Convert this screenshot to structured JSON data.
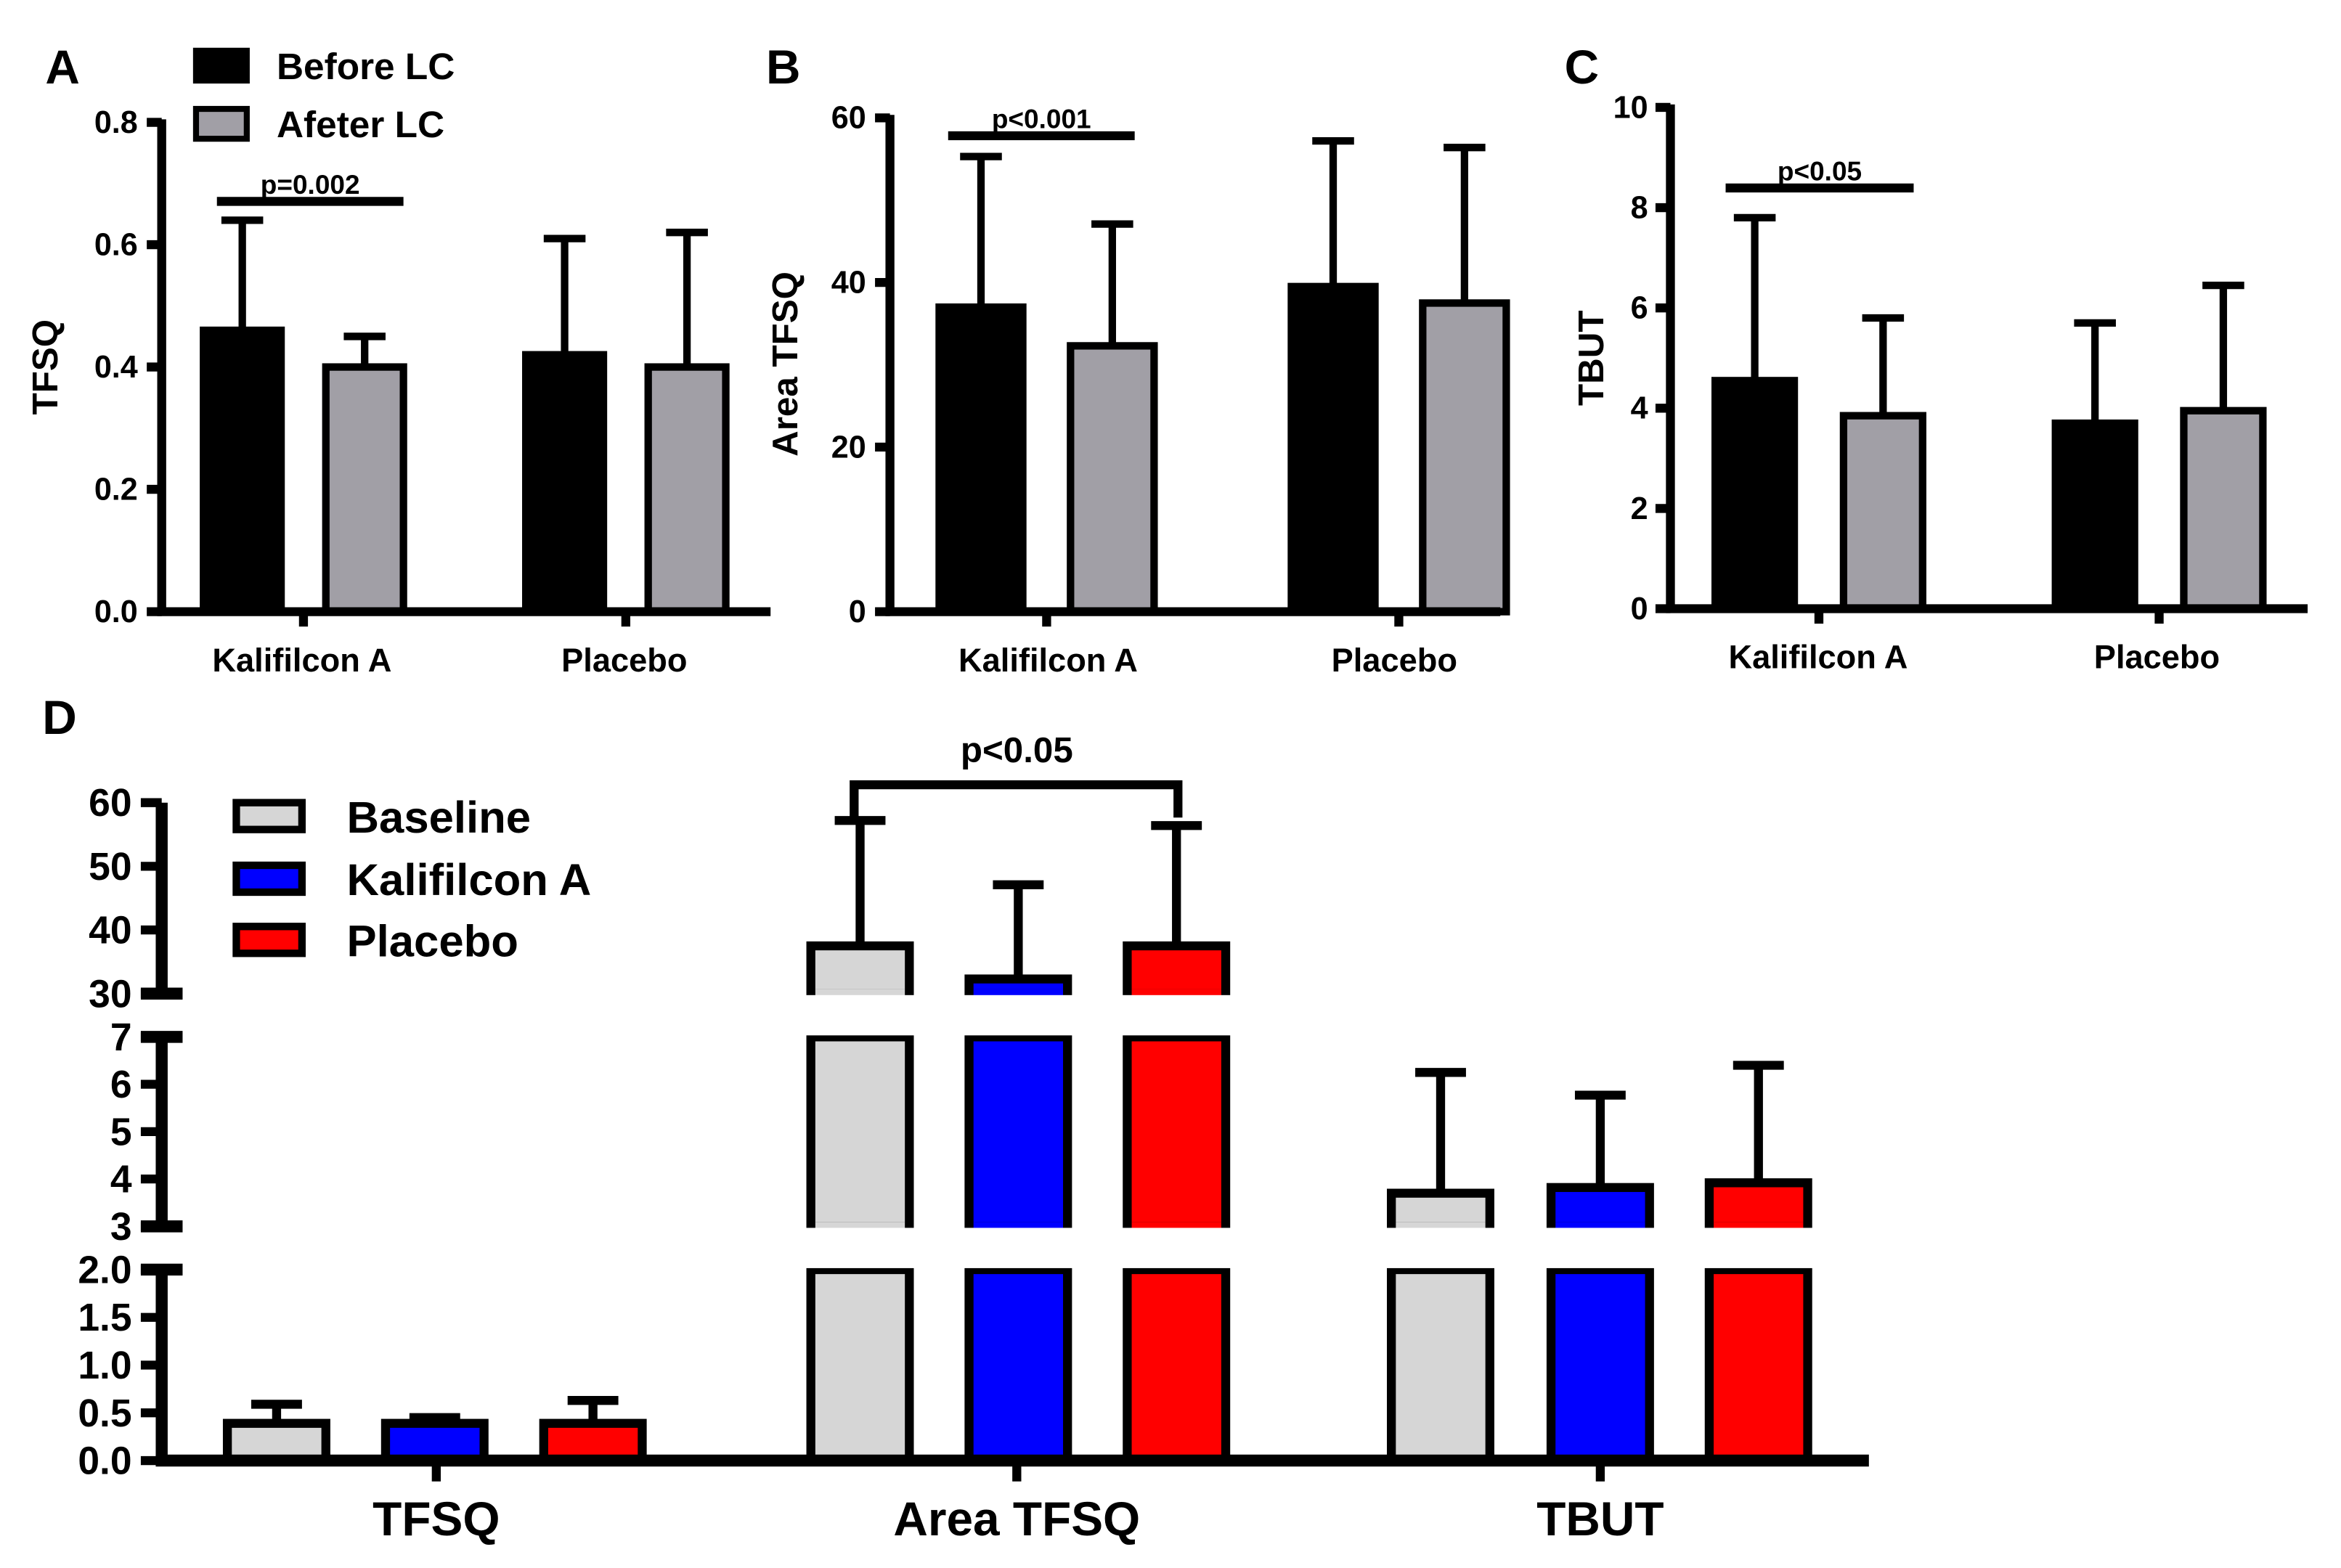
{
  "chart_data": [
    {
      "panel": "A",
      "type": "bar",
      "ylabel": "TFSQ",
      "xlabel": "",
      "ylim": [
        0,
        0.8
      ],
      "yticks": [
        "0.0",
        "0.2",
        "0.4",
        "0.6",
        "0.8"
      ],
      "yticks_values": [
        0,
        0.2,
        0.4,
        0.6,
        0.8
      ],
      "categories": [
        "Kalifilcon A",
        "Placebo"
      ],
      "series": [
        {
          "name": "Before LC",
          "color": "#000000",
          "values": [
            0.46,
            0.42
          ],
          "errors": [
            0.18,
            0.19
          ]
        },
        {
          "name": "Afeter LC",
          "color": "#a19fa6",
          "values": [
            0.4,
            0.4
          ],
          "errors": [
            0.05,
            0.22
          ]
        }
      ],
      "legend": {
        "position": "top-left"
      },
      "annotation": {
        "text": "p=0.002",
        "category": 0
      }
    },
    {
      "panel": "B",
      "type": "bar",
      "ylabel": "Area TFSQ",
      "xlabel": "",
      "ylim": [
        0,
        60
      ],
      "yticks": [
        "0",
        "20",
        "40",
        "60"
      ],
      "yticks_values": [
        0,
        20,
        40,
        60
      ],
      "categories": [
        "Kalifilcon A",
        "Placebo"
      ],
      "series": [
        {
          "name": "Before LC",
          "color": "#000000",
          "values": [
            37,
            39.5
          ],
          "errors": [
            18.3,
            17.7
          ]
        },
        {
          "name": "Afeter LC",
          "color": "#a19fa6",
          "values": [
            32.3,
            37.5
          ],
          "errors": [
            14.8,
            18.9
          ]
        }
      ],
      "annotation": {
        "text": "p<0.001",
        "category": 0
      }
    },
    {
      "panel": "C",
      "type": "bar",
      "ylabel": "TBUT",
      "xlabel": "",
      "ylim": [
        0,
        10
      ],
      "yticks": [
        "0",
        "2",
        "4",
        "6",
        "8",
        "10"
      ],
      "yticks_values": [
        0,
        2,
        4,
        6,
        8,
        10
      ],
      "categories": [
        "Kalifilcon A",
        "Placebo"
      ],
      "series": [
        {
          "name": "Before LC",
          "color": "#000000",
          "values": [
            4.55,
            3.7
          ],
          "errors": [
            3.25,
            2.0
          ]
        },
        {
          "name": "Afeter LC",
          "color": "#a19fa6",
          "values": [
            3.85,
            3.95
          ],
          "errors": [
            1.95,
            2.5
          ]
        }
      ],
      "annotation": {
        "text": "p<0.05",
        "category": 0
      }
    },
    {
      "panel": "D",
      "type": "bar",
      "xlabel": "",
      "ylabel": "",
      "axis_segments": [
        {
          "range": [
            0,
            2
          ],
          "ticks": [
            "0.0",
            "0.5",
            "1.0",
            "1.5",
            "2.0"
          ],
          "tick_values": [
            0,
            0.5,
            1.0,
            1.5,
            2.0
          ]
        },
        {
          "range": [
            3,
            7
          ],
          "ticks": [
            "3",
            "4",
            "5",
            "6",
            "7"
          ],
          "tick_values": [
            3,
            4,
            5,
            6,
            7
          ]
        },
        {
          "range": [
            30,
            60
          ],
          "ticks": [
            "30",
            "40",
            "50",
            "60"
          ],
          "tick_values": [
            30,
            40,
            50,
            60
          ]
        }
      ],
      "categories": [
        "TFSQ",
        "Area TFSQ",
        "TBUT"
      ],
      "series": [
        {
          "name": "Baseline",
          "color": "#d6d6d6",
          "values": [
            0.39,
            37.5,
            3.7
          ],
          "errors": [
            0.2,
            19.7,
            2.55
          ]
        },
        {
          "name": "Kalifilcon A",
          "color": "#0000ff",
          "values": [
            0.39,
            32.3,
            3.82
          ],
          "errors": [
            0.06,
            14.8,
            1.95
          ]
        },
        {
          "name": "Placebo",
          "color": "#ff0000",
          "values": [
            0.39,
            37.5,
            3.92
          ],
          "errors": [
            0.24,
            18.9,
            2.48
          ]
        }
      ],
      "legend": {
        "position": "top-left"
      },
      "annotation": {
        "text": "p<0.05",
        "category": 1
      }
    }
  ]
}
